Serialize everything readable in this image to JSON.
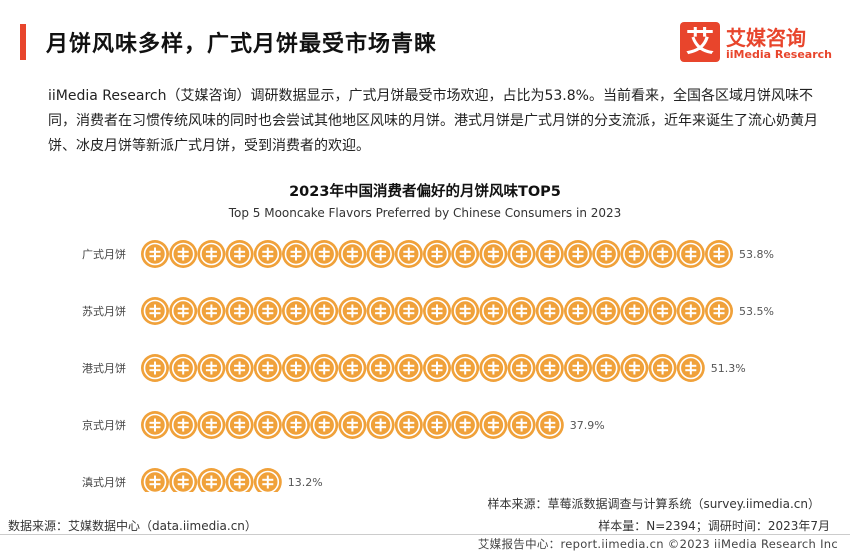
{
  "header": {
    "title": "月饼风味多样，广式月饼最受市场青睐",
    "logo_mark": "艾",
    "logo_cn": "艾媒咨询",
    "logo_en": "iiMedia Research",
    "accent_color": "#e8452c"
  },
  "intro": "iiMedia Research（艾媒咨询）调研数据显示，广式月饼最受市场欢迎，占比为53.8%。当前看来，全国各区域月饼风味不同，消费者在习惯传统风味的同时也会尝试其他地区风味的月饼。港式月饼是广式月饼的分支流派，近年来诞生了流心奶黄月饼、冰皮月饼等新派广式月饼，受到消费者的欢迎。",
  "chart_data": {
    "type": "bar",
    "orientation": "horizontal",
    "title": "2023年中国消费者偏好的月饼风味TOP5",
    "subtitle": "Top 5 Mooncake Flavors Preferred by Chinese Consumers in 2023",
    "categories": [
      "广式月饼",
      "苏式月饼",
      "港式月饼",
      "京式月饼",
      "滇式月饼"
    ],
    "values": [
      53.8,
      53.5,
      51.3,
      37.9,
      13.2
    ],
    "value_labels": [
      "53.8%",
      "53.5%",
      "51.3%",
      "37.9%",
      "13.2%"
    ],
    "unit": "%",
    "marker": "mooncake-icon",
    "marker_color": "#f0a13a",
    "grid": false,
    "legend": "none"
  },
  "source": {
    "sample_source": "样本来源：草莓派数据调查与计算系统（survey.iimedia.cn）",
    "data_source": "数据来源：艾媒数据中心（data.iimedia.cn）",
    "meta": "样本量：N=2394；调研时间：2023年7月"
  },
  "footer": "艾媒报告中心：report.iimedia.cn  ©2023  iiMedia Research  Inc"
}
